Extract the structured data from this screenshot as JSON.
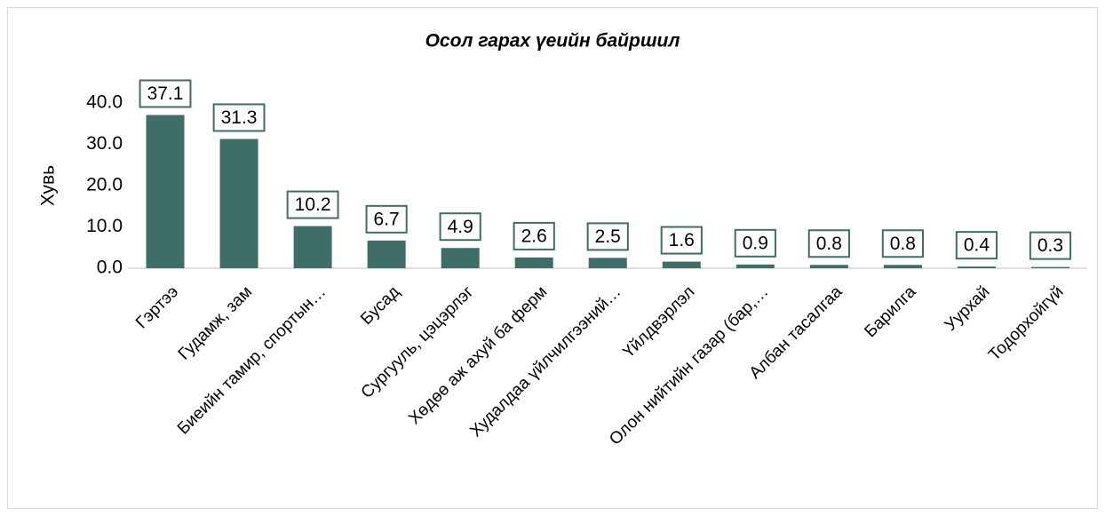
{
  "chart_data": {
    "type": "bar",
    "title": "Осол гарах үеийн байршил",
    "y_label": "Хувь",
    "categories": [
      "Гэртээ",
      "Гудамж, зам",
      "Биеийн тамир, спортын…",
      "Бусад",
      "Сургууль, цэцэрлэг",
      "Хөдөө аж ахуй ба ферм",
      "Худалдаа үйлчилгээний…",
      "Үйлдвэрлэл",
      "Олон нийтийн газар (бар,…",
      "Албан тасалгаа",
      "Барилга",
      "Уурхай",
      "Тодорхойгүй"
    ],
    "values": [
      37.1,
      31.3,
      10.2,
      6.7,
      4.9,
      2.6,
      2.5,
      1.6,
      0.9,
      0.8,
      0.8,
      0.4,
      0.3
    ],
    "color": "#3f6e68",
    "ylim": [
      0,
      40
    ],
    "yticks": [
      {
        "value": 0,
        "label": "0.0"
      },
      {
        "value": 10,
        "label": "10.0"
      },
      {
        "value": 20,
        "label": "20.0"
      },
      {
        "value": 30,
        "label": "30.0"
      },
      {
        "value": 40,
        "label": "40.0"
      }
    ],
    "grid": false
  }
}
